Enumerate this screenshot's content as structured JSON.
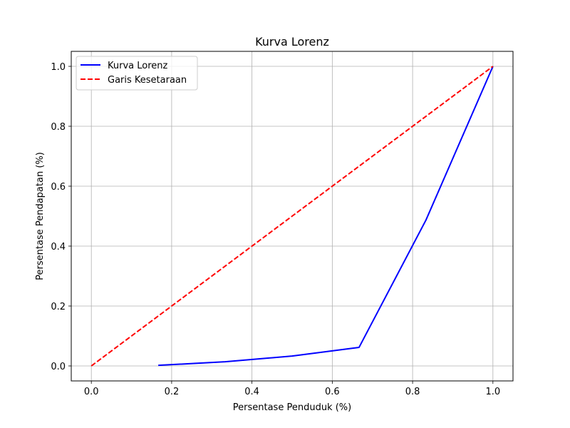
{
  "chart_data": {
    "type": "line",
    "title": "Kurva Lorenz",
    "xlabel": "Persentase Penduduk (%)",
    "ylabel": "Persentase Pendapatan (%)",
    "xlim": [
      -0.05,
      1.05
    ],
    "ylim": [
      -0.05,
      1.05
    ],
    "xticks": [
      0.0,
      0.2,
      0.4,
      0.6,
      0.8,
      1.0
    ],
    "xtick_labels": [
      "0.0",
      "0.2",
      "0.4",
      "0.6",
      "0.8",
      "1.0"
    ],
    "yticks": [
      0.0,
      0.2,
      0.4,
      0.6,
      0.8,
      1.0
    ],
    "ytick_labels": [
      "0.0",
      "0.2",
      "0.4",
      "0.6",
      "0.8",
      "1.0"
    ],
    "grid": true,
    "legend_position": "top-left",
    "series": [
      {
        "name": "Kurva Lorenz",
        "color": "#0000ff",
        "style": "solid",
        "x": [
          0.1667,
          0.3333,
          0.5,
          0.6667,
          0.8333,
          1.0
        ],
        "y": [
          0.002,
          0.014,
          0.033,
          0.062,
          0.487,
          1.0
        ]
      },
      {
        "name": "Garis Kesetaraan",
        "color": "#ff0000",
        "style": "dashed",
        "x": [
          0.0,
          1.0
        ],
        "y": [
          0.0,
          1.0
        ]
      }
    ]
  }
}
